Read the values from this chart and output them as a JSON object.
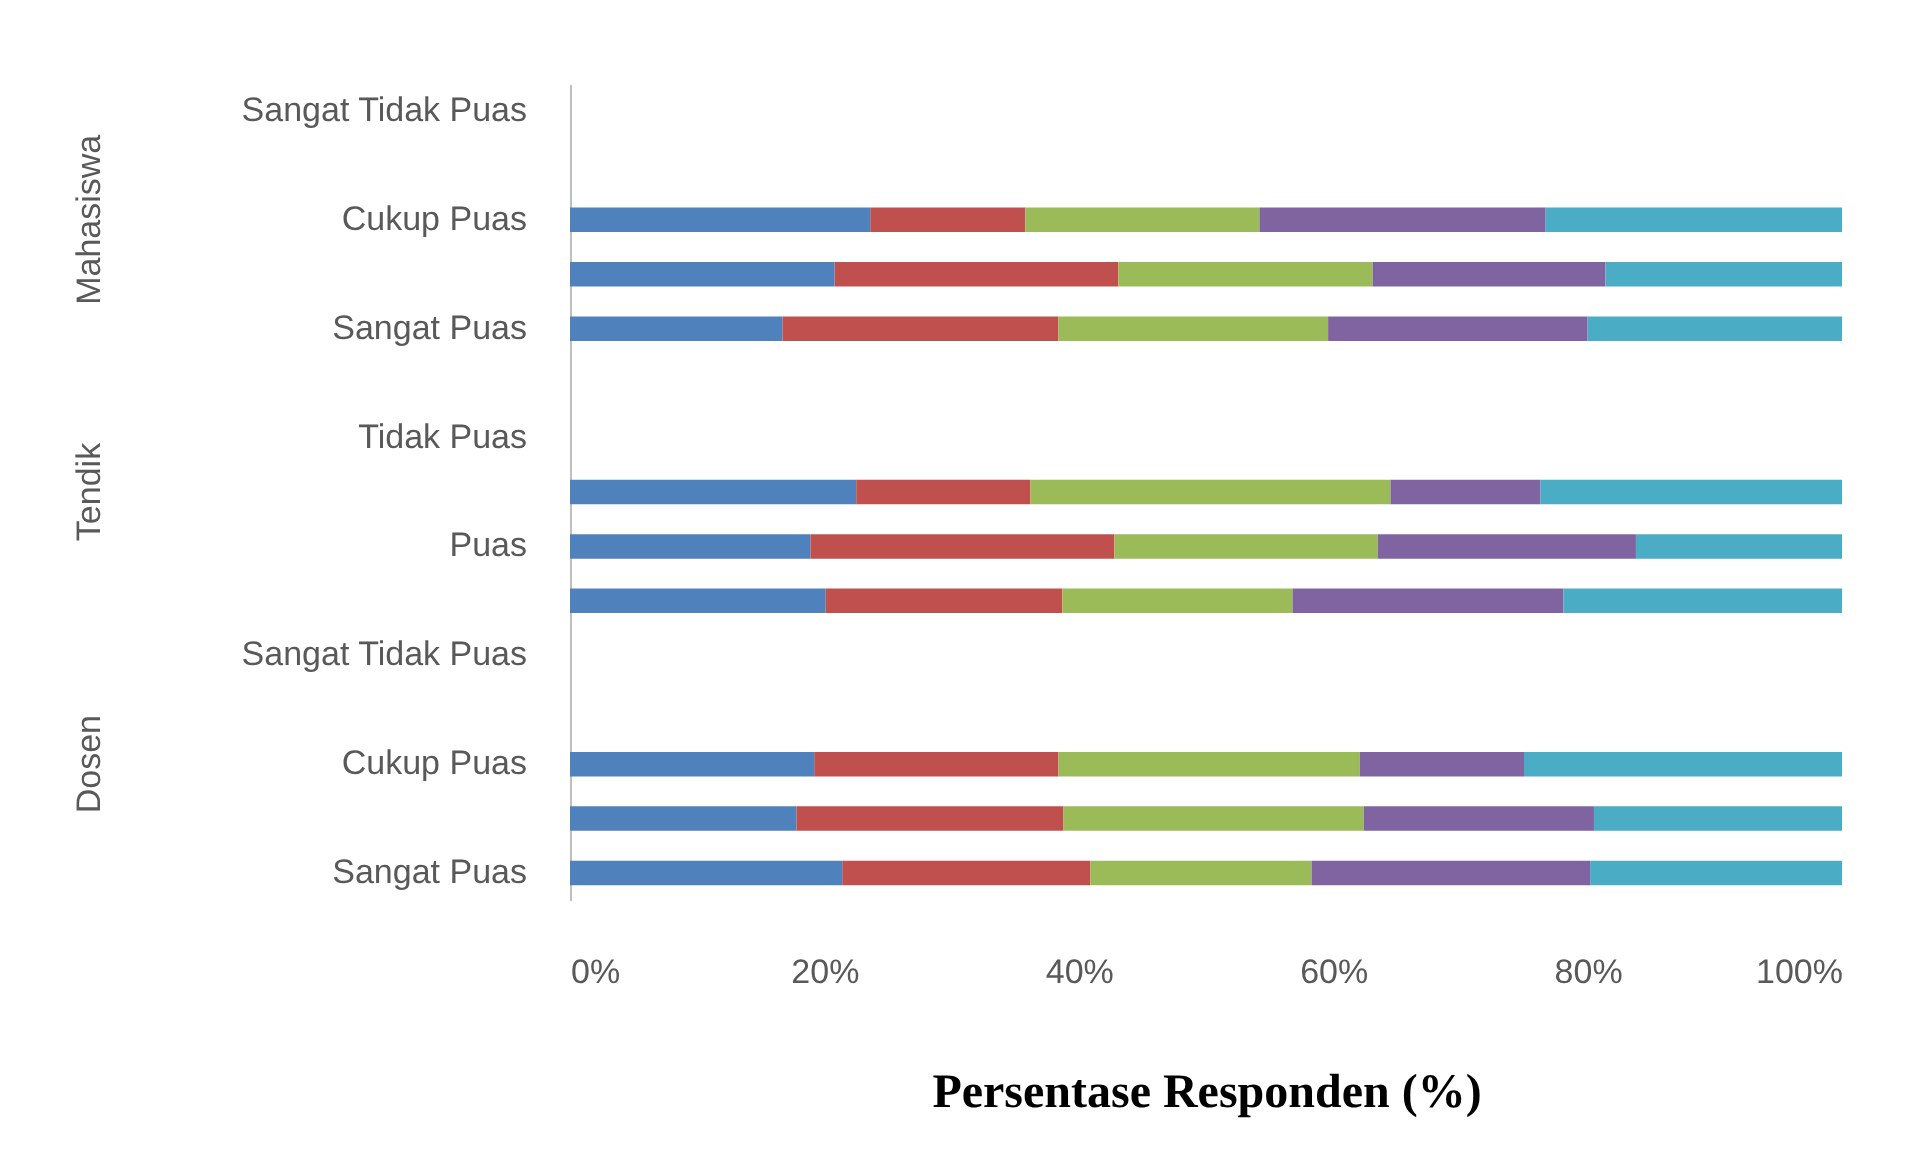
{
  "chart_data": {
    "type": "bar",
    "orientation": "horizontal",
    "stacked": true,
    "xlabel": "Persentase Responden (%)",
    "annotations": [
      "Mahasiswa",
      "Tendik",
      "Dosen"
    ],
    "categories": [
      "Sangat Tidak Puas",
      null,
      "Cukup Puas",
      null,
      "Sangat Puas",
      null,
      "Tidak Puas",
      null,
      "Puas",
      null,
      "Sangat Tidak Puas",
      null,
      "Cukup Puas",
      null,
      "Sangat Puas"
    ],
    "series": [
      {
        "color": "#4f81bd",
        "values": [
          null,
          null,
          23.6,
          20.8,
          16.7,
          null,
          null,
          22.5,
          18.9,
          20.1,
          null,
          null,
          19.2,
          17.8,
          21.4
        ]
      },
      {
        "color": "#c0504d",
        "values": [
          null,
          null,
          12.2,
          22.3,
          21.7,
          null,
          null,
          13.7,
          23.9,
          18.6,
          null,
          null,
          19.2,
          21.0,
          19.5
        ]
      },
      {
        "color": "#9bbb59",
        "values": [
          null,
          null,
          18.4,
          20.0,
          21.2,
          null,
          null,
          28.3,
          20.7,
          18.1,
          null,
          null,
          23.7,
          23.6,
          17.4
        ]
      },
      {
        "color": "#8064a2",
        "values": [
          null,
          null,
          22.5,
          18.3,
          20.4,
          null,
          null,
          11.8,
          20.3,
          21.3,
          null,
          null,
          12.9,
          18.1,
          21.9
        ]
      },
      {
        "color": "#4bacc6",
        "values": [
          null,
          null,
          23.3,
          18.6,
          20.0,
          null,
          null,
          23.7,
          16.2,
          21.9,
          null,
          null,
          25.0,
          19.5,
          19.8
        ]
      }
    ],
    "xlim": [
      0,
      100
    ],
    "xticks": [
      {
        "value": 0,
        "label": "0%"
      },
      {
        "value": 20,
        "label": "20%"
      },
      {
        "value": 40,
        "label": "40%"
      },
      {
        "value": 60,
        "label": "60%"
      },
      {
        "value": 80,
        "label": "80%"
      },
      {
        "value": 100,
        "label": "100%"
      }
    ],
    "grid": false,
    "legend": false
  }
}
